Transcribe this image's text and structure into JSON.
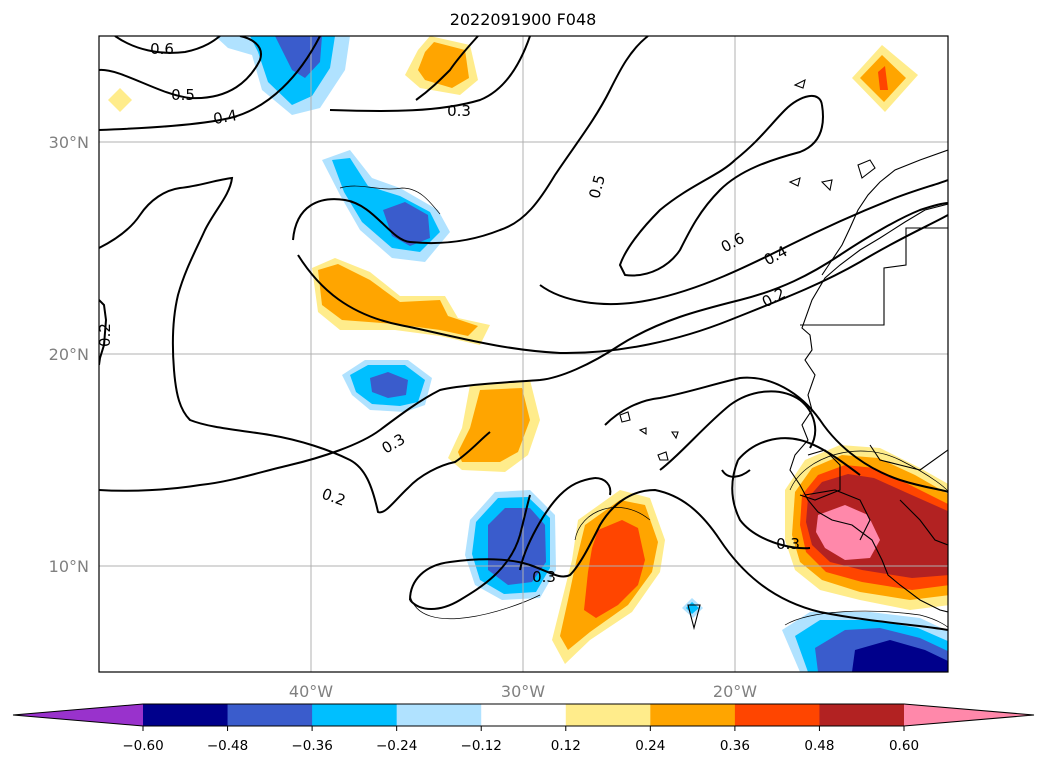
{
  "title": "2022091900 F048",
  "map": {
    "lat_range": [
      5,
      35
    ],
    "lon_range": [
      -50,
      -10
    ],
    "gridlines": true,
    "lat_ticks": [
      {
        "value": 30,
        "label": "30°N"
      },
      {
        "value": 20,
        "label": "20°N"
      },
      {
        "value": 10,
        "label": "10°N"
      }
    ],
    "lon_ticks": [
      {
        "value": -40,
        "label": "40°W"
      },
      {
        "value": -30,
        "label": "30°W"
      },
      {
        "value": -20,
        "label": "20°W"
      }
    ],
    "grid_color": "#b0b0b0",
    "coastline_color": "#000000"
  },
  "colorbar": {
    "orientation": "horizontal",
    "extend": "both",
    "levels": [
      "-0.60",
      "-0.48",
      "-0.36",
      "-0.24",
      "-0.12",
      "0.12",
      "0.24",
      "0.36",
      "0.48",
      "0.60"
    ],
    "colors": [
      "#9932cc",
      "#00008b",
      "#3a5ccc",
      "#00bfff",
      "#b0e2ff",
      "#ffffff",
      "#ffec8b",
      "#ffa500",
      "#ff4500",
      "#b22222",
      "#ff88aa"
    ]
  },
  "shaded_anomalies": [
    {
      "lon": -40.5,
      "lat": 33.5,
      "peak": "-0.48"
    },
    {
      "lon": -34.5,
      "lat": 33.0,
      "peak": "0.36"
    },
    {
      "lon": -48.0,
      "lat": 32.0,
      "peak": "0.12"
    },
    {
      "lon": -12.5,
      "lat": 33.0,
      "peak": "0.48"
    },
    {
      "lon": -37.0,
      "lat": 26.0,
      "peak": "-0.48"
    },
    {
      "lon": -38.5,
      "lat": 23.5,
      "peak": "0.36"
    },
    {
      "lon": -37.5,
      "lat": 19.0,
      "peak": "-0.48"
    },
    {
      "lon": -32.0,
      "lat": 16.5,
      "peak": "0.36"
    },
    {
      "lon": -30.5,
      "lat": 10.5,
      "peak": "-0.48"
    },
    {
      "lon": -25.5,
      "lat": 9.5,
      "peak": "0.48"
    },
    {
      "lon": -12.0,
      "lat": 12.0,
      "peak": "0.60"
    },
    {
      "lon": -12.5,
      "lat": 6.0,
      "peak": "-0.60"
    },
    {
      "lon": -21.0,
      "lat": 7.5,
      "peak": "-0.24"
    }
  ],
  "contour_labels": [
    {
      "text": "0.6",
      "lon": -47.7,
      "lat": 34.2
    },
    {
      "text": "0.5",
      "lon": -46.0,
      "lat": 31.9
    },
    {
      "text": "0.4",
      "lon": -45.9,
      "lat": 30.6
    },
    {
      "text": "0.3",
      "lon": -33.1,
      "lat": 31.5
    },
    {
      "text": "0.5",
      "lon": -25.0,
      "lat": 27.6
    },
    {
      "text": "0.6",
      "lon": -18.0,
      "lat": 24.9
    },
    {
      "text": "0.4",
      "lon": -15.0,
      "lat": 22.4
    },
    {
      "text": "0.2",
      "lon": -15.0,
      "lat": 22.4
    },
    {
      "text": "0.2",
      "lon": -49.7,
      "lat": 21.0
    },
    {
      "text": "0.3",
      "lon": -33.2,
      "lat": 17.8
    },
    {
      "text": "0.2",
      "lon": -38.2,
      "lat": 13.2
    },
    {
      "text": "0.3",
      "lon": -29.3,
      "lat": 9.5
    },
    {
      "text": "0.3",
      "lon": -17.0,
      "lat": 11.2
    }
  ]
}
